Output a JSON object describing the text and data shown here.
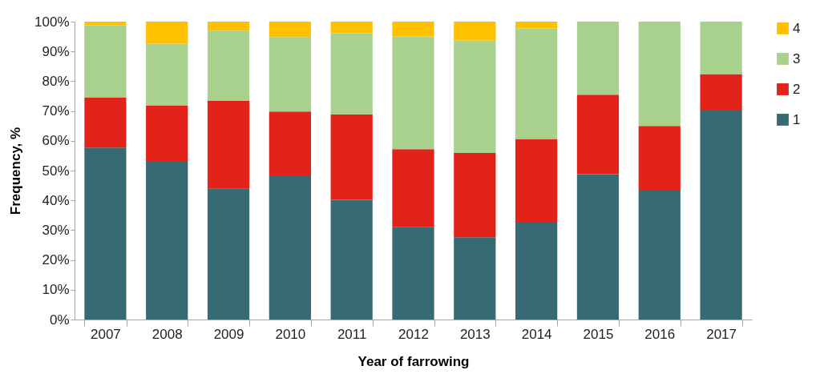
{
  "chart_data": {
    "type": "bar",
    "stacked": true,
    "xlabel": "Year of farrowing",
    "ylabel": "Frequency, %",
    "categories": [
      "2007",
      "2008",
      "2009",
      "2010",
      "2011",
      "2012",
      "2013",
      "2014",
      "2015",
      "2016",
      "2017"
    ],
    "series": [
      {
        "name": "1",
        "color": "#376a73",
        "values": [
          57.7,
          53.2,
          43.9,
          48.1,
          40.2,
          31.0,
          27.6,
          32.5,
          48.8,
          43.3,
          70.4
        ]
      },
      {
        "name": "2",
        "color": "#e32219",
        "values": [
          16.9,
          18.7,
          29.5,
          21.7,
          28.7,
          26.2,
          28.3,
          28.1,
          26.7,
          21.7,
          12.0
        ]
      },
      {
        "name": "3",
        "color": "#a9d18e",
        "values": [
          24.2,
          20.7,
          23.6,
          25.0,
          27.2,
          37.8,
          37.8,
          37.1,
          24.5,
          35.0,
          17.6
        ]
      },
      {
        "name": "4",
        "color": "#ffc000",
        "values": [
          1.2,
          7.4,
          3.0,
          5.2,
          3.9,
          5.0,
          6.3,
          2.3,
          null,
          null,
          null
        ]
      }
    ],
    "ylim": [
      0,
      100
    ],
    "yticks": [
      {
        "value": 0,
        "label": "0%"
      },
      {
        "value": 10,
        "label": "10%"
      },
      {
        "value": 20,
        "label": "20%"
      },
      {
        "value": 30,
        "label": "30%"
      },
      {
        "value": 40,
        "label": "40%"
      },
      {
        "value": 50,
        "label": "50%"
      },
      {
        "value": 60,
        "label": "60%"
      },
      {
        "value": 70,
        "label": "70%"
      },
      {
        "value": 80,
        "label": "80%"
      },
      {
        "value": 90,
        "label": "90%"
      },
      {
        "value": 100,
        "label": "100%"
      }
    ],
    "grid": false,
    "legend": "right"
  }
}
